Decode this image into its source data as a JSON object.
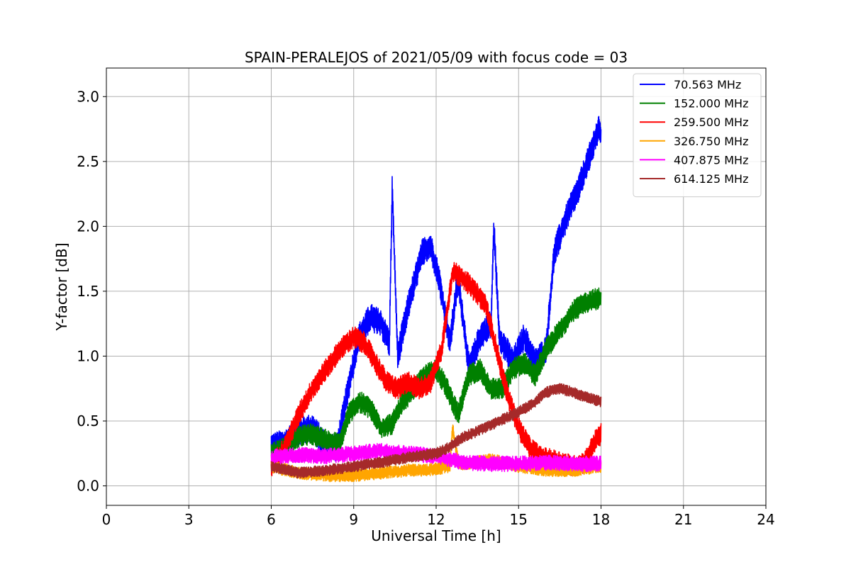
{
  "chart_data": {
    "type": "line",
    "title": "SPAIN-PERALEJOS of 2021/05/09 with focus code = 03",
    "xlabel": "Universal Time [h]",
    "ylabel": "Y-factor [dB]",
    "xlim": [
      0,
      24
    ],
    "ylim": [
      -0.15,
      3.22
    ],
    "xticks": [
      0,
      3,
      6,
      9,
      12,
      15,
      18,
      21,
      24
    ],
    "xtick_labels": [
      "0",
      "3",
      "6",
      "9",
      "12",
      "15",
      "18",
      "21",
      "24"
    ],
    "yticks": [
      0.0,
      0.5,
      1.0,
      1.5,
      2.0,
      2.5,
      3.0
    ],
    "ytick_labels": [
      "0.0",
      "0.5",
      "1.0",
      "1.5",
      "2.0",
      "2.5",
      "3.0"
    ],
    "grid": true,
    "legend_position": "top-right",
    "series": [
      {
        "name": "70.563 MHz",
        "legend_label": " 70.563 MHz",
        "color": "#0000ff",
        "noise": 0.09,
        "x": [
          6.0,
          6.5,
          7.0,
          7.5,
          8.0,
          8.4,
          8.8,
          9.2,
          9.6,
          10.0,
          10.3,
          10.4,
          10.6,
          11.0,
          11.5,
          11.8,
          12.1,
          12.5,
          12.8,
          13.2,
          13.6,
          14.0,
          14.1,
          14.3,
          14.8,
          15.2,
          15.6,
          16.0,
          16.3,
          16.8,
          17.2,
          17.6,
          17.9,
          18.0
        ],
        "y": [
          0.3,
          0.33,
          0.42,
          0.45,
          0.3,
          0.3,
          0.75,
          1.15,
          1.3,
          1.25,
          1.1,
          2.3,
          1.0,
          1.4,
          1.8,
          1.85,
          1.6,
          1.1,
          1.6,
          0.9,
          1.15,
          1.25,
          2.0,
          1.15,
          0.95,
          1.15,
          0.95,
          1.05,
          1.8,
          2.1,
          2.3,
          2.55,
          2.75,
          2.7
        ]
      },
      {
        "name": "152.000 MHz",
        "legend_label": "152.000 MHz",
        "color": "#008000",
        "noise": 0.07,
        "x": [
          6.0,
          6.5,
          7.0,
          7.5,
          8.0,
          8.5,
          8.8,
          9.2,
          9.6,
          10.0,
          10.4,
          10.8,
          11.2,
          11.6,
          12.0,
          12.4,
          12.8,
          13.2,
          13.6,
          14.0,
          14.4,
          14.8,
          15.2,
          15.6,
          16.0,
          16.5,
          17.0,
          17.5,
          18.0
        ],
        "y": [
          0.25,
          0.3,
          0.38,
          0.4,
          0.35,
          0.32,
          0.55,
          0.65,
          0.6,
          0.45,
          0.48,
          0.65,
          0.75,
          0.85,
          0.9,
          0.75,
          0.55,
          0.85,
          0.9,
          0.75,
          0.75,
          0.9,
          0.95,
          0.85,
          1.05,
          1.2,
          1.35,
          1.42,
          1.45
        ]
      },
      {
        "name": "259.500 MHz",
        "legend_label": "259.500 MHz",
        "color": "#ff0000",
        "noise": 0.07,
        "x": [
          6.0,
          6.5,
          7.0,
          7.5,
          8.0,
          8.5,
          9.0,
          9.4,
          9.8,
          10.2,
          10.6,
          11.0,
          11.4,
          11.8,
          12.2,
          12.6,
          13.0,
          13.4,
          13.8,
          14.2,
          14.6,
          15.0,
          15.4,
          15.8,
          16.2,
          16.6,
          17.0,
          17.4,
          17.8,
          18.0
        ],
        "y": [
          0.15,
          0.3,
          0.55,
          0.75,
          0.9,
          1.05,
          1.15,
          1.1,
          0.95,
          0.8,
          0.75,
          0.8,
          0.75,
          0.8,
          1.05,
          1.65,
          1.6,
          1.5,
          1.4,
          1.05,
          0.7,
          0.45,
          0.3,
          0.22,
          0.2,
          0.18,
          0.15,
          0.18,
          0.35,
          0.4
        ]
      },
      {
        "name": "326.750 MHz",
        "legend_label": "326.750 MHz",
        "color": "#ffa500",
        "noise": 0.04,
        "x": [
          6.0,
          7.0,
          8.0,
          9.0,
          10.0,
          11.0,
          11.5,
          12.0,
          12.5,
          12.6,
          12.8,
          13.0,
          14.0,
          14.5,
          15.0,
          16.0,
          17.0,
          18.0
        ],
        "y": [
          0.15,
          0.1,
          0.08,
          0.08,
          0.1,
          0.12,
          0.12,
          0.13,
          0.15,
          0.45,
          0.18,
          0.17,
          0.2,
          0.18,
          0.15,
          0.12,
          0.12,
          0.15
        ]
      },
      {
        "name": "407.875 MHz",
        "legend_label": "407.875 MHz",
        "color": "#ff00ff",
        "noise": 0.05,
        "x": [
          6.0,
          7.0,
          8.0,
          9.0,
          10.0,
          11.0,
          12.0,
          13.0,
          14.0,
          15.0,
          16.0,
          17.0,
          18.0
        ],
        "y": [
          0.22,
          0.24,
          0.23,
          0.25,
          0.27,
          0.25,
          0.23,
          0.18,
          0.17,
          0.17,
          0.18,
          0.17,
          0.17
        ]
      },
      {
        "name": "614.125 MHz",
        "legend_label": "614.125 MHz",
        "color": "#a52a2a",
        "noise": 0.035,
        "x": [
          6.0,
          7.0,
          8.0,
          9.0,
          10.0,
          11.0,
          12.0,
          12.5,
          13.0,
          13.5,
          14.0,
          14.5,
          15.0,
          15.5,
          16.0,
          16.5,
          17.0,
          17.5,
          18.0
        ],
        "y": [
          0.15,
          0.1,
          0.12,
          0.15,
          0.18,
          0.22,
          0.25,
          0.3,
          0.38,
          0.42,
          0.47,
          0.52,
          0.57,
          0.63,
          0.72,
          0.75,
          0.72,
          0.68,
          0.65
        ]
      }
    ]
  }
}
